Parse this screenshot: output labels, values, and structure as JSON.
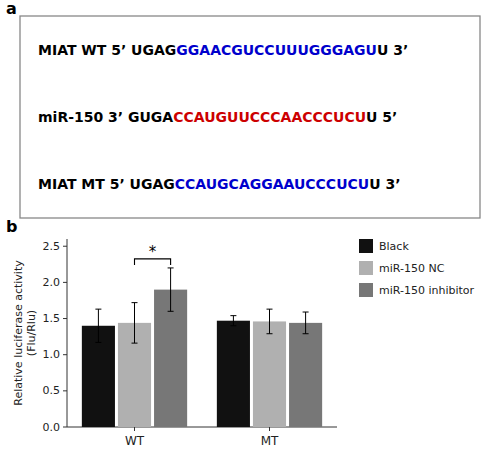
{
  "chart_data": [
    {
      "type": "text",
      "title": "a",
      "annotations": [
        {
          "segments": [
            {
              "text": "MIAT WT 5’ UGAG",
              "color": "#000000"
            },
            {
              "text": "GGAACGUCCUUUGGGAGU",
              "color": "#0000cc"
            },
            {
              "text": "U 3’",
              "color": "#000000"
            }
          ]
        },
        {
          "segments": [
            {
              "text": "miR-150 3’ GUGA",
              "color": "#000000"
            },
            {
              "text": "CCAUGUUCCCAACCCUCU",
              "color": "#cc0000"
            },
            {
              "text": "U 5’",
              "color": "#000000"
            }
          ]
        },
        {
          "segments": [
            {
              "text": "MIAT MT 5’ UGAG",
              "color": "#000000"
            },
            {
              "text": "CCAUGCAGGAAUCCCUCU",
              "color": "#0000cc"
            },
            {
              "text": "U 3’",
              "color": "#000000"
            }
          ]
        }
      ]
    },
    {
      "type": "bar",
      "title": "b",
      "categories": [
        "WT",
        "MT"
      ],
      "series": [
        {
          "name": "Black",
          "color": "#111111",
          "values": [
            1.4,
            1.47
          ],
          "errors": [
            0.23,
            0.07
          ]
        },
        {
          "name": "miR-150 NC",
          "color": "#b0b0b0",
          "values": [
            1.44,
            1.46
          ],
          "errors": [
            0.28,
            0.17
          ]
        },
        {
          "name": "miR-150 inhibitor",
          "color": "#777777",
          "values": [
            1.9,
            1.44
          ],
          "errors": [
            0.3,
            0.15
          ]
        }
      ],
      "ylabel": "Relative luciferase activity\n(Flu/Rlu)",
      "ylim": [
        0.0,
        2.6
      ],
      "yticks": [
        {
          "value": 0.0,
          "label": "0.0"
        },
        0.5,
        {
          "value": 1.0,
          "label": "1.0"
        },
        1.5,
        {
          "value": 2.0,
          "label": "2.0"
        },
        2.5
      ],
      "legend": "right",
      "annotations": [
        {
          "text": "*",
          "category": 0,
          "series": [
            1,
            2
          ]
        }
      ]
    }
  ]
}
